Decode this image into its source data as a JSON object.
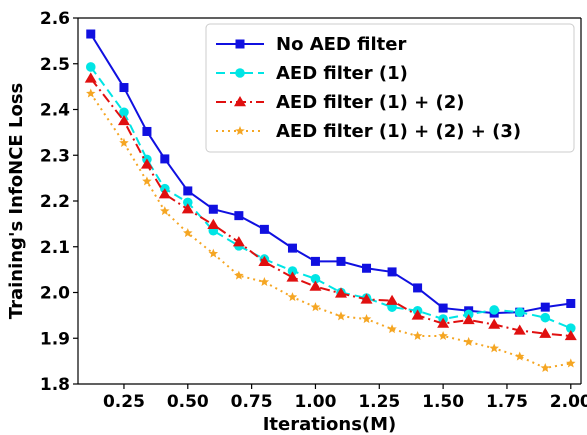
{
  "chart_data": {
    "type": "line",
    "xlabel": "Iterations(M)",
    "ylabel": "Training's InfoNCE Loss",
    "xlim": [
      0.07,
      2.04
    ],
    "ylim": [
      1.8,
      2.6
    ],
    "x_ticks": [
      0.25,
      0.5,
      0.75,
      1.0,
      1.25,
      1.5,
      1.75,
      2.0
    ],
    "x_tick_labels": [
      "0.25",
      "0.50",
      "0.75",
      "1.00",
      "1.25",
      "1.50",
      "1.75",
      "2.00"
    ],
    "y_ticks": [
      1.8,
      1.9,
      2.0,
      2.1,
      2.2,
      2.3,
      2.4,
      2.5,
      2.6
    ],
    "y_tick_labels": [
      "1.8",
      "1.9",
      "2.0",
      "2.1",
      "2.2",
      "2.3",
      "2.4",
      "2.5",
      "2.6"
    ],
    "grid": false,
    "legend_position": "top-right",
    "x": [
      0.12,
      0.25,
      0.34,
      0.41,
      0.5,
      0.6,
      0.7,
      0.8,
      0.91,
      1.0,
      1.1,
      1.2,
      1.3,
      1.4,
      1.5,
      1.6,
      1.7,
      1.8,
      1.9,
      2.0
    ],
    "series": [
      {
        "name": "No AED filter",
        "color": "#1010e0",
        "marker": "square",
        "dash": "solid",
        "values": [
          2.565,
          2.448,
          2.352,
          2.292,
          2.222,
          2.182,
          2.168,
          2.138,
          2.097,
          2.068,
          2.068,
          2.053,
          2.045,
          2.01,
          1.966,
          1.96,
          1.955,
          1.957,
          1.968,
          1.976
        ]
      },
      {
        "name": "AED filter (1)",
        "color": "#00e5e5",
        "marker": "circle",
        "dash": "dashed",
        "values": [
          2.493,
          2.394,
          2.291,
          2.227,
          2.197,
          2.135,
          2.102,
          2.073,
          2.047,
          2.03,
          2.0,
          1.988,
          1.968,
          1.96,
          1.942,
          1.952,
          1.962,
          1.957,
          1.945,
          1.922
        ]
      },
      {
        "name": "AED filter (1) + (2)",
        "color": "#e01010",
        "marker": "triangle",
        "dash": "dashdot",
        "values": [
          2.468,
          2.375,
          2.28,
          2.215,
          2.182,
          2.148,
          2.11,
          2.067,
          2.033,
          2.013,
          1.998,
          1.985,
          1.982,
          1.95,
          1.932,
          1.94,
          1.93,
          1.917,
          1.91,
          1.905
        ]
      },
      {
        "name": "AED filter (1) + (2) + (3)",
        "color": "#f5a623",
        "marker": "star",
        "dash": "dotted",
        "values": [
          2.435,
          2.327,
          2.243,
          2.178,
          2.13,
          2.085,
          2.037,
          2.023,
          1.99,
          1.968,
          1.948,
          1.942,
          1.92,
          1.905,
          1.905,
          1.892,
          1.878,
          1.86,
          1.835,
          1.845
        ]
      }
    ]
  }
}
